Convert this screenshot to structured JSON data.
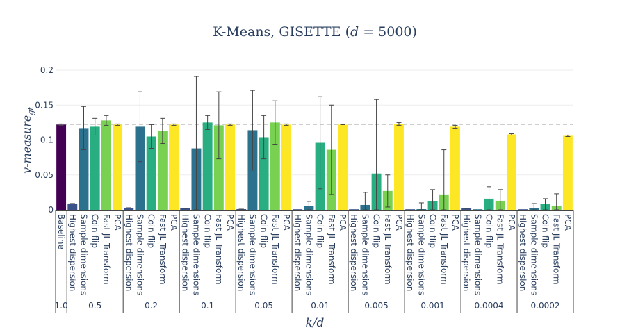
{
  "chart_data": {
    "type": "bar",
    "title_text": "K-Means, GISETTE (",
    "title_var": "d",
    "title_eq": " = 5000)",
    "xlabel": "k/d",
    "ylabel_main": "v-measure",
    "ylabel_sub": "gt",
    "ylim": [
      0,
      0.2
    ],
    "yticks": [
      "0",
      "0.05",
      "0.1",
      "0.15",
      "0.2"
    ],
    "reference_line": 0.122,
    "colors": {
      "Baseline": "#440154",
      "Highest dispersion": "#3b528b",
      "Sample dimensions": "#2c728e",
      "Coin flip": "#28ae80",
      "Fast JL Transform": "#79d151",
      "PCA": "#fde725"
    },
    "groups": [
      {
        "label": "1.0",
        "bars": [
          {
            "method": "Baseline",
            "value": 0.122,
            "err": 0.001
          }
        ]
      },
      {
        "label": "0.5",
        "bars": [
          {
            "method": "Highest dispersion",
            "value": 0.009,
            "err": 0.0
          },
          {
            "method": "Sample dimensions",
            "value": 0.117,
            "err": 0.031
          },
          {
            "method": "Coin flip",
            "value": 0.119,
            "err": 0.012
          },
          {
            "method": "Fast JL Transform",
            "value": 0.128,
            "err": 0.007
          },
          {
            "method": "PCA",
            "value": 0.122,
            "err": 0.001
          }
        ]
      },
      {
        "label": "0.2",
        "bars": [
          {
            "method": "Highest dispersion",
            "value": 0.003,
            "err": 0.0
          },
          {
            "method": "Sample dimensions",
            "value": 0.119,
            "err": 0.05
          },
          {
            "method": "Coin flip",
            "value": 0.105,
            "err": 0.017
          },
          {
            "method": "Fast JL Transform",
            "value": 0.113,
            "err": 0.018
          },
          {
            "method": "PCA",
            "value": 0.122,
            "err": 0.001
          }
        ]
      },
      {
        "label": "0.1",
        "bars": [
          {
            "method": "Highest dispersion",
            "value": 0.002,
            "err": 0.0
          },
          {
            "method": "Sample dimensions",
            "value": 0.088,
            "err": 0.103
          },
          {
            "method": "Coin flip",
            "value": 0.125,
            "err": 0.01
          },
          {
            "method": "Fast JL Transform",
            "value": 0.121,
            "err": 0.048
          },
          {
            "method": "PCA",
            "value": 0.122,
            "err": 0.001
          }
        ]
      },
      {
        "label": "0.05",
        "bars": [
          {
            "method": "Highest dispersion",
            "value": 0.001,
            "err": 0.0
          },
          {
            "method": "Sample dimensions",
            "value": 0.114,
            "err": 0.057
          },
          {
            "method": "Coin flip",
            "value": 0.104,
            "err": 0.031
          },
          {
            "method": "Fast JL Transform",
            "value": 0.125,
            "err": 0.031
          },
          {
            "method": "PCA",
            "value": 0.122,
            "err": 0.001
          }
        ]
      },
      {
        "label": "0.01",
        "bars": [
          {
            "method": "Highest dispersion",
            "value": 0.0,
            "err": 0.0
          },
          {
            "method": "Sample dimensions",
            "value": 0.005,
            "err": 0.007
          },
          {
            "method": "Coin flip",
            "value": 0.096,
            "err": 0.066
          },
          {
            "method": "Fast JL Transform",
            "value": 0.086,
            "err": 0.064
          },
          {
            "method": "PCA",
            "value": 0.122,
            "err": 0.0
          }
        ]
      },
      {
        "label": "0.005",
        "bars": [
          {
            "method": "Highest dispersion",
            "value": 0.0,
            "err": 0.0
          },
          {
            "method": "Sample dimensions",
            "value": 0.007,
            "err": 0.018
          },
          {
            "method": "Coin flip",
            "value": 0.052,
            "err": 0.106
          },
          {
            "method": "Fast JL Transform",
            "value": 0.027,
            "err": 0.023
          },
          {
            "method": "PCA",
            "value": 0.123,
            "err": 0.002
          }
        ]
      },
      {
        "label": "0.001",
        "bars": [
          {
            "method": "Highest dispersion",
            "value": 0.0,
            "err": 0.0
          },
          {
            "method": "Sample dimensions",
            "value": 0.001,
            "err": 0.009
          },
          {
            "method": "Coin flip",
            "value": 0.012,
            "err": 0.017
          },
          {
            "method": "Fast JL Transform",
            "value": 0.022,
            "err": 0.064
          },
          {
            "method": "PCA",
            "value": 0.119,
            "err": 0.002
          }
        ]
      },
      {
        "label": "0.0004",
        "bars": [
          {
            "method": "Highest dispersion",
            "value": 0.002,
            "err": 0.0
          },
          {
            "method": "Sample dimensions",
            "value": 0.0,
            "err": 0.0
          },
          {
            "method": "Coin flip",
            "value": 0.016,
            "err": 0.017
          },
          {
            "method": "Fast JL Transform",
            "value": 0.013,
            "err": 0.016
          },
          {
            "method": "PCA",
            "value": 0.108,
            "err": 0.001
          }
        ]
      },
      {
        "label": "0.0002",
        "bars": [
          {
            "method": "Highest dispersion",
            "value": 0.0,
            "err": 0.0
          },
          {
            "method": "Sample dimensions",
            "value": 0.002,
            "err": 0.007
          },
          {
            "method": "Coin flip",
            "value": 0.008,
            "err": 0.008
          },
          {
            "method": "Fast JL Transform",
            "value": 0.006,
            "err": 0.017
          },
          {
            "method": "PCA",
            "value": 0.106,
            "err": 0.001
          }
        ]
      }
    ]
  }
}
